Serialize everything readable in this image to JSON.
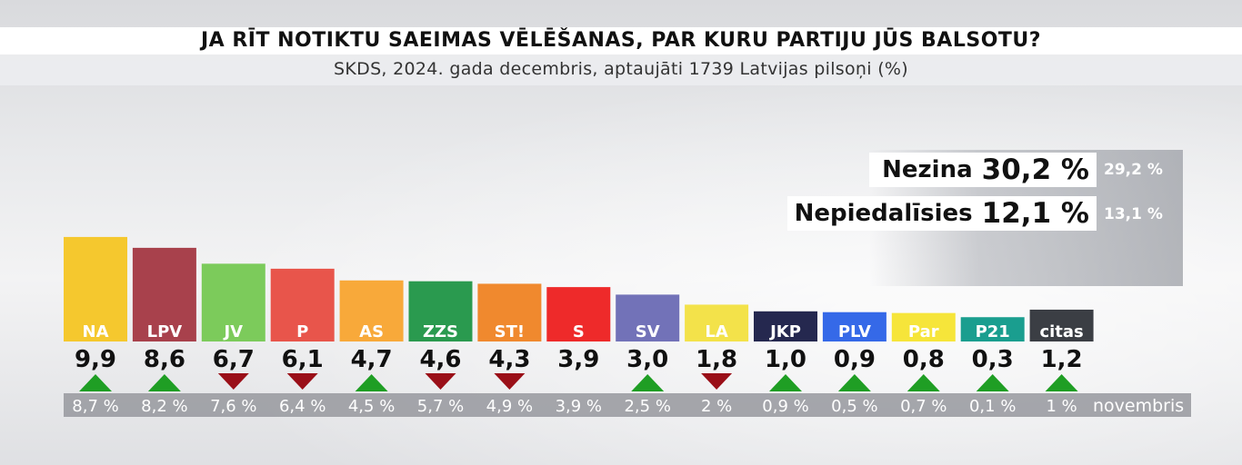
{
  "title": "JA RĪT NOTIKTU SAEIMAS VĒLĒŠANAS, PAR KURU PARTIJU JŪS BALSOTU?",
  "subtitle": "SKDS, 2024. gada decembris, aptaujāti 1739 Latvijas pilsoņi (%)",
  "stats": {
    "nezina": {
      "label": "Nezina",
      "value": "30,2 %",
      "previous": "29,2 %"
    },
    "nepiedalisies": {
      "label": "Nepiedalīsies",
      "value": "12,1 %",
      "previous": "13,1 %"
    }
  },
  "previous_label": "novembris",
  "chart_data": {
    "type": "bar",
    "categories": [
      "NA",
      "LPV",
      "JV",
      "P",
      "AS",
      "ZZS",
      "ST!",
      "S",
      "SV",
      "LA",
      "JKP",
      "PLV",
      "Par",
      "P21",
      "citas"
    ],
    "values": [
      9.9,
      8.6,
      6.7,
      6.1,
      4.7,
      4.6,
      4.3,
      3.9,
      3.0,
      1.8,
      1.0,
      0.9,
      0.8,
      0.3,
      1.2
    ],
    "value_labels": [
      "9,9",
      "8,6",
      "6,7",
      "6,1",
      "4,7",
      "4,6",
      "4,3",
      "3,9",
      "3,0",
      "1,8",
      "1,0",
      "0,9",
      "0,8",
      "0,3",
      "1,2"
    ],
    "previous_labels": [
      "8,7 %",
      "8,2 %",
      "7,6 %",
      "6,4 %",
      "4,5 %",
      "5,7 %",
      "4,9 %",
      "3,9 %",
      "2,5 %",
      "2 %",
      "0,9 %",
      "0,5 %",
      "0,7 %",
      "0,1 %",
      "1 %"
    ],
    "trend": [
      "up",
      "up",
      "down",
      "down",
      "up",
      "down",
      "down",
      "none",
      "up",
      "down",
      "up",
      "up",
      "up",
      "up",
      "up"
    ],
    "colors": [
      "#f5c82e",
      "#a8414c",
      "#7ccb5b",
      "#e8554b",
      "#f8a93a",
      "#2a9a4f",
      "#f0892e",
      "#ee2a2a",
      "#7272b8",
      "#f3e24a",
      "#25284f",
      "#3569e8",
      "#f6e53a",
      "#1a9e8f",
      "#3b3e44"
    ],
    "label_text_colors": [
      "#fff",
      "#fff",
      "#fff",
      "#fff",
      "#fff",
      "#fff",
      "#fff",
      "#fff",
      "#fff",
      "#fff",
      "#fff",
      "#fff",
      "#fff",
      "#fff",
      "#fff"
    ],
    "trend_colors": {
      "up": "#1f9e24",
      "down": "#9a0f18"
    }
  }
}
